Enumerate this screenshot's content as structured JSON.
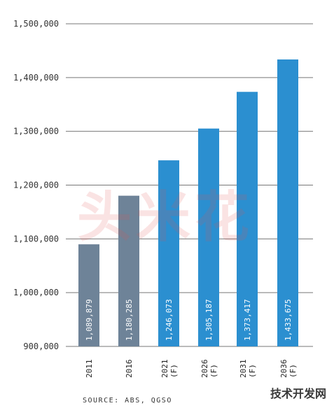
{
  "chart_data": {
    "type": "bar",
    "categories": [
      "2011",
      "2016",
      "2021\n(F)",
      "2026\n(F)",
      "2031\n(F)",
      "2036\n(F)"
    ],
    "values": [
      1089879,
      1180285,
      1246073,
      1305187,
      1373417,
      1433675
    ],
    "data_labels": [
      "1,089,879",
      "1,180,285",
      "1,246,073",
      "1,305,187",
      "1,373,417",
      "1,433,675"
    ],
    "forecast": [
      false,
      false,
      true,
      true,
      true,
      true
    ],
    "ylim": [
      900000,
      1500000
    ],
    "yticks": [
      900000,
      1000000,
      1100000,
      1200000,
      1300000,
      1400000,
      1500000
    ],
    "ytick_labels": [
      "900,000",
      "1,000,000",
      "1,100,000",
      "1,200,000",
      "1,300,000",
      "1,400,000",
      "1,500,000"
    ],
    "grid": true,
    "colors": {
      "actual": "#6e8398",
      "forecast": "#2b8fd0",
      "grid": "#777777"
    }
  },
  "source_note": "SOURCE: ABS, QGSO",
  "watermark": {
    "site_text": "技术开发网",
    "center_text": "头米花"
  }
}
